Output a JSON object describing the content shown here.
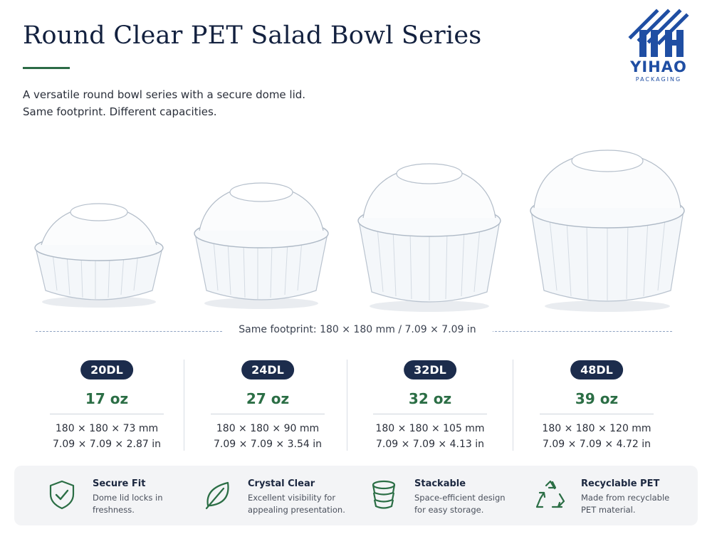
{
  "header": {
    "title": "Round Clear PET Salad Bowl Series",
    "subtitle_lines": [
      "A versatile round bowl series with a secure dome lid.",
      "Same footprint. Different capacities."
    ]
  },
  "logo": {
    "name": "YIHAO",
    "sub": "PACKAGING"
  },
  "footprint": "Same footprint: 180 × 180 mm / 7.09 × 7.09 in",
  "products": [
    {
      "code": "20DL",
      "oz": "17 oz",
      "dims_mm": "180 × 180 × 73 mm",
      "dims_in": "7.09 × 7.09 × 2.87 in"
    },
    {
      "code": "24DL",
      "oz": "27 oz",
      "dims_mm": "180 × 180 × 90 mm",
      "dims_in": "7.09 × 7.09 × 3.54 in"
    },
    {
      "code": "32DL",
      "oz": "32 oz",
      "dims_mm": "180 × 180 × 105 mm",
      "dims_in": "7.09 × 7.09 × 4.13 in"
    },
    {
      "code": "48DL",
      "oz": "39 oz",
      "dims_mm": "180 × 180 × 120 mm",
      "dims_in": "7.09 × 7.09 × 4.72 in"
    }
  ],
  "features": [
    {
      "title": "Secure Fit",
      "desc": [
        "Dome lid locks in",
        "freshness."
      ],
      "icon": "shield-check-icon"
    },
    {
      "title": "Crystal Clear",
      "desc": [
        "Excellent visibility for",
        "appealing presentation."
      ],
      "icon": "leaf-icon"
    },
    {
      "title": "Stackable",
      "desc": [
        "Space-efficient design",
        "for easy storage."
      ],
      "icon": "stacked-bowls-icon"
    },
    {
      "title": "Recyclable PET",
      "desc": [
        "Made from recyclable",
        "PET material."
      ],
      "icon": "recycle-icon"
    }
  ],
  "colors": {
    "navy": "#1c2c4c",
    "green": "#2b6e45",
    "logo_blue": "#1f4ea3"
  }
}
